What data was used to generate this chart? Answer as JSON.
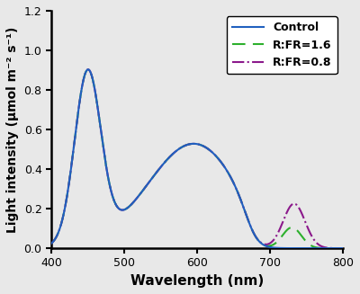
{
  "title": "",
  "xlabel": "Wavelength (nm)",
  "ylabel": "Light intensity (μmol m⁻² s⁻¹)",
  "xlim": [
    400,
    800
  ],
  "ylim": [
    0,
    1.2
  ],
  "xticks": [
    400,
    500,
    600,
    700,
    800
  ],
  "yticks": [
    0.0,
    0.2,
    0.4,
    0.6,
    0.8,
    1.0,
    1.2
  ],
  "control_color": "#2060bf",
  "rfr16_color": "#2db02d",
  "rfr08_color": "#8b198b",
  "legend_labels": [
    "Control",
    "R:FR=1.6",
    "R:FR=0.8"
  ],
  "figsize": [
    4.0,
    3.27
  ],
  "dpi": 100,
  "bg_color": "#e8e8e8"
}
